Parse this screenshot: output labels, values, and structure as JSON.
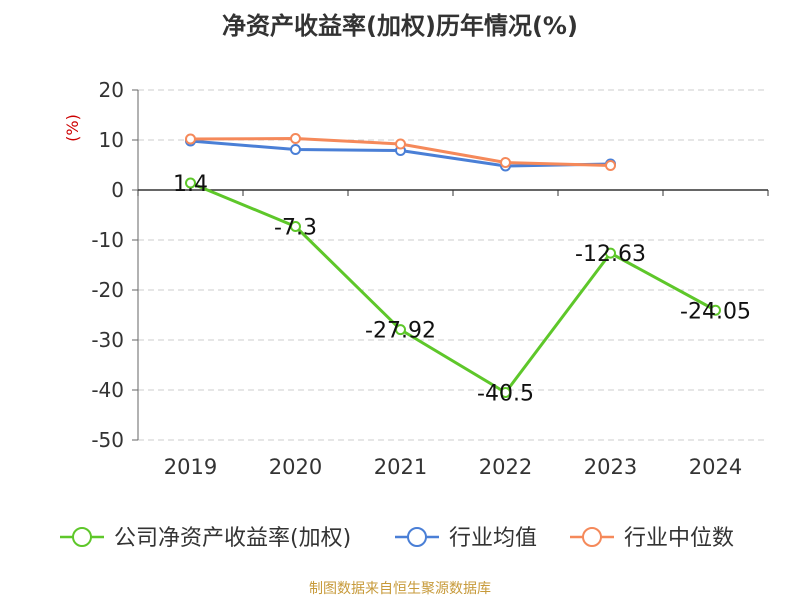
{
  "chart_data": {
    "type": "line",
    "title": "净资产收益率(加权)历年情况(%)",
    "ylabel": "(%)",
    "categories": [
      "2019",
      "2020",
      "2021",
      "2022",
      "2023",
      "2024"
    ],
    "ylim": [
      -50,
      20
    ],
    "yticks": [
      20,
      10,
      0,
      -10,
      -20,
      -30,
      -40,
      -50
    ],
    "grid": true,
    "legend_position": "bottom",
    "series": [
      {
        "name": "公司净资产收益率(加权)",
        "color": "#5ec72a",
        "values": [
          1.4,
          -7.3,
          -27.92,
          -40.5,
          -12.63,
          -24.05
        ],
        "labels": [
          "1.4",
          "-7.3",
          "-27.92",
          "-40.5",
          "-12.63",
          "-24.05"
        ]
      },
      {
        "name": "行业均值",
        "color": "#4a7fd6",
        "values": [
          9.8,
          8.1,
          7.9,
          4.8,
          5.2,
          null
        ]
      },
      {
        "name": "行业中位数",
        "color": "#f5895a",
        "values": [
          10.2,
          10.3,
          9.2,
          5.5,
          4.9,
          null
        ]
      }
    ]
  },
  "footer": {
    "source": "制图数据来自恒生聚源数据库"
  }
}
